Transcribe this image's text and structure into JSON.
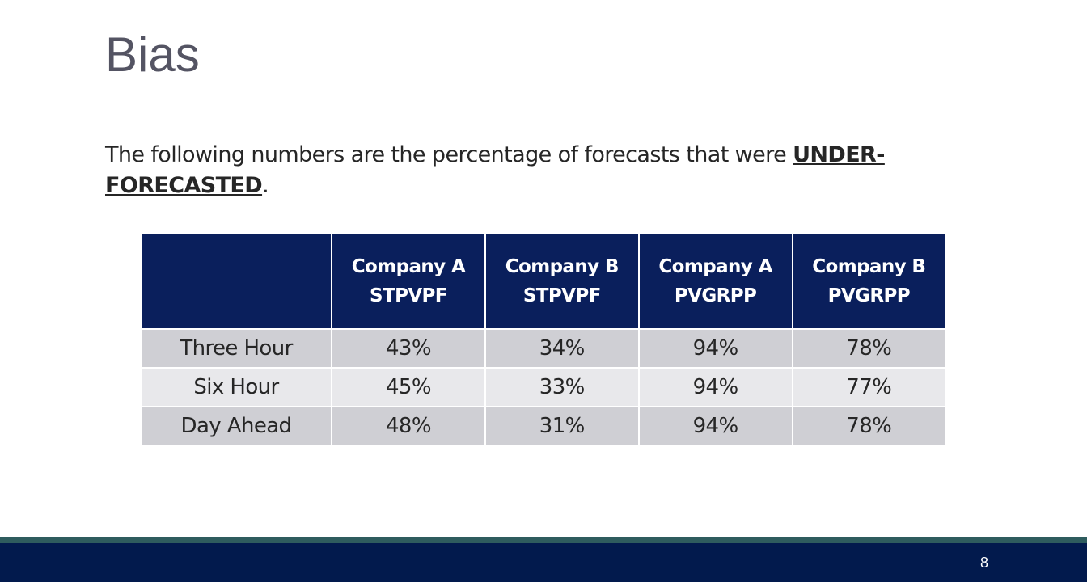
{
  "slide": {
    "title": "Bias",
    "intro": {
      "text": "The following numbers are the percentage of forecasts that were ",
      "emphasis": "UNDER-FORECASTED",
      "suffix": "."
    },
    "page_number": "8"
  },
  "table": {
    "headers": [
      {
        "line1": "",
        "line2": ""
      },
      {
        "line1": "Company A",
        "line2": "STPVPF"
      },
      {
        "line1": "Company B",
        "line2": "STPVPF"
      },
      {
        "line1": "Company A",
        "line2": "PVGRPP"
      },
      {
        "line1": "Company B",
        "line2": "PVGRPP"
      }
    ],
    "rows": [
      {
        "label": "Three Hour",
        "values": [
          "43%",
          "34%",
          "94%",
          "78%"
        ]
      },
      {
        "label": "Six Hour",
        "values": [
          "45%",
          "33%",
          "94%",
          "77%"
        ]
      },
      {
        "label": "Day Ahead",
        "values": [
          "48%",
          "31%",
          "94%",
          "78%"
        ]
      }
    ]
  },
  "colors": {
    "header_bg": "#0a1f5c",
    "row_dark": "#cfcfd4",
    "row_light": "#e8e8eb",
    "footer_bg": "#021a4d",
    "footer_accent": "#2e5c5e",
    "title_color": "#545463"
  }
}
